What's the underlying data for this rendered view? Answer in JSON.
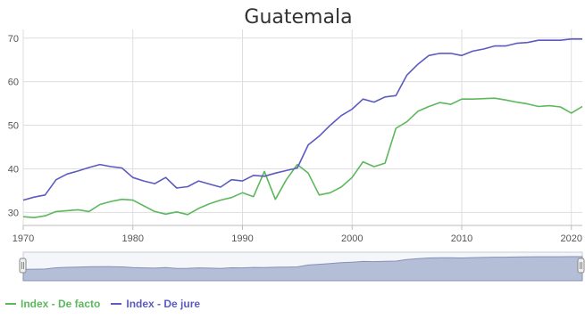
{
  "chart_data": {
    "type": "line",
    "title": "Guatemala",
    "xlabel": "",
    "ylabel": "",
    "xlim": [
      1970,
      2021
    ],
    "ylim": [
      27,
      72
    ],
    "xticks": [
      1970,
      1980,
      1990,
      2000,
      2010,
      2020
    ],
    "yticks": [
      30,
      40,
      50,
      60,
      70
    ],
    "grid": true,
    "legend_position": "bottom-left",
    "navigator": true,
    "series": [
      {
        "name": "Index - De facto",
        "color": "#5cb85c",
        "x": [
          1970,
          1971,
          1972,
          1973,
          1974,
          1975,
          1976,
          1977,
          1978,
          1979,
          1980,
          1981,
          1982,
          1983,
          1984,
          1985,
          1986,
          1987,
          1988,
          1989,
          1990,
          1991,
          1992,
          1993,
          1994,
          1995,
          1996,
          1997,
          1998,
          1999,
          2000,
          2001,
          2002,
          2003,
          2004,
          2005,
          2006,
          2007,
          2008,
          2009,
          2010,
          2011,
          2012,
          2013,
          2014,
          2015,
          2016,
          2017,
          2018,
          2019,
          2020,
          2021
        ],
        "y": [
          29,
          28.8,
          29.2,
          30.2,
          30.4,
          30.6,
          30.2,
          31.8,
          32.5,
          33,
          32.8,
          31.5,
          30.2,
          29.6,
          30.1,
          29.5,
          30.9,
          32,
          32.8,
          33.4,
          34.5,
          33.6,
          39.4,
          33,
          37.5,
          41,
          39,
          34,
          34.5,
          35.8,
          38,
          41.6,
          40.5,
          41.3,
          49.3,
          50.8,
          53.2,
          54.3,
          55.2,
          54.8,
          56,
          56,
          56.1,
          56.2,
          55.8,
          55.3,
          54.9,
          54.3,
          54.5,
          54.2,
          52.8,
          54.3
        ]
      },
      {
        "name": "Index - De jure",
        "color": "#5b5bc0",
        "x": [
          1970,
          1971,
          1972,
          1973,
          1974,
          1975,
          1976,
          1977,
          1978,
          1979,
          1980,
          1981,
          1982,
          1983,
          1984,
          1985,
          1986,
          1987,
          1988,
          1989,
          1990,
          1991,
          1992,
          1993,
          1994,
          1995,
          1996,
          1997,
          1998,
          1999,
          2000,
          2001,
          2002,
          2003,
          2004,
          2005,
          2006,
          2007,
          2008,
          2009,
          2010,
          2011,
          2012,
          2013,
          2014,
          2015,
          2016,
          2017,
          2018,
          2019,
          2020,
          2021
        ],
        "y": [
          32.8,
          33.5,
          34,
          37.5,
          38.8,
          39.5,
          40.3,
          41,
          40.5,
          40.2,
          38,
          37.2,
          36.6,
          38,
          35.6,
          35.9,
          37.2,
          36.5,
          35.8,
          37.5,
          37.2,
          38.5,
          38.3,
          39,
          39.6,
          40.2,
          45.5,
          47.5,
          50,
          52.2,
          53.7,
          56,
          55.3,
          56.5,
          56.8,
          61.5,
          64,
          66,
          66.5,
          66.5,
          66,
          67,
          67.5,
          68.2,
          68.2,
          68.8,
          69,
          69.5,
          69.5,
          69.5,
          69.8,
          69.8
        ]
      }
    ]
  }
}
